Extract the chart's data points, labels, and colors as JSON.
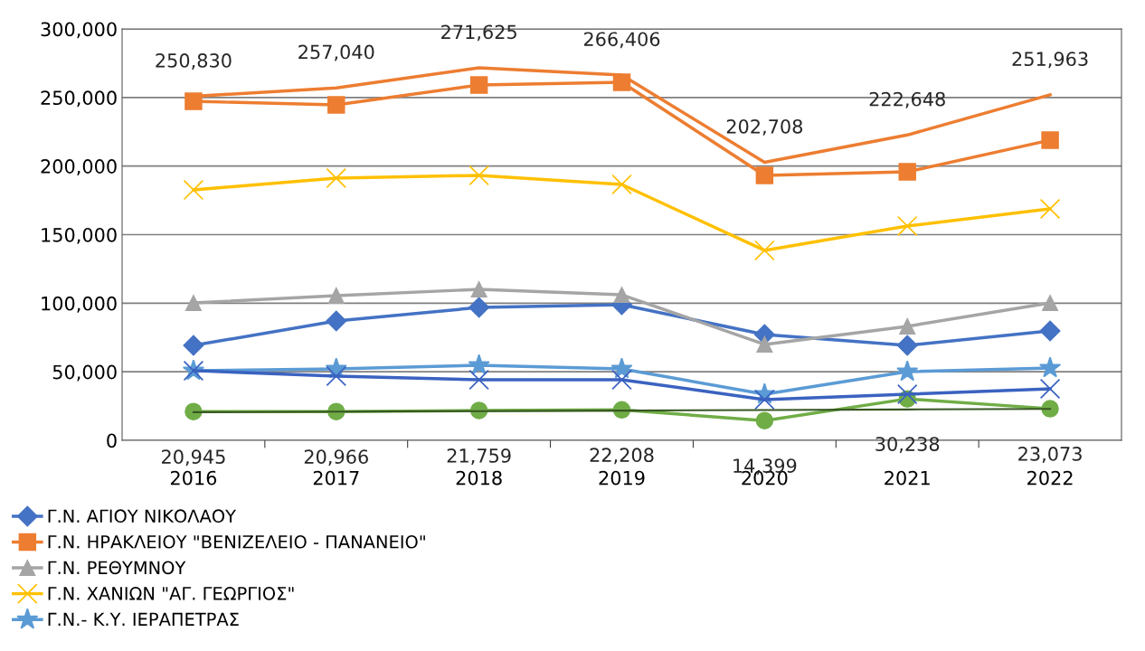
{
  "chart_data": {
    "type": "line",
    "categories": [
      "2016",
      "2017",
      "2018",
      "2019",
      "2020",
      "2021",
      "2022"
    ],
    "ylim": [
      0,
      300000
    ],
    "yticks": [
      {
        "value": 0,
        "label": "0"
      },
      {
        "value": 50000,
        "label": "50,000"
      },
      {
        "value": 100000,
        "label": "100,000"
      },
      {
        "value": 150000,
        "label": "150,000"
      },
      {
        "value": 200000,
        "label": "200,000"
      },
      {
        "value": 250000,
        "label": "250,000"
      },
      {
        "value": 300000,
        "label": "300,000"
      }
    ],
    "grid": "y",
    "legend": "bottom",
    "series": [
      {
        "name": "Γ.Ν. ΑΓΙΟΥ ΝΙΚΟΛΑΟΥ",
        "color": "#4472c4",
        "marker": "diamond",
        "values": [
          69200,
          87000,
          96900,
          98900,
          77100,
          69200,
          79800
        ]
      },
      {
        "name": "Γ.Ν. ΗΡΑΚΛΕΙΟΥ \"ΒΕΝΙΖΕΛΕΙΟ - ΠΑΝΑΝΕΙΟ\"",
        "color": "#ed7d31",
        "marker": "square",
        "values": [
          247200,
          244600,
          259100,
          261100,
          193200,
          195800,
          218900
        ]
      },
      {
        "name": "Γ.Ν. ΡΕΘΥΜΝΟΥ",
        "color": "#a5a5a5",
        "marker": "triangle",
        "values": [
          100200,
          105500,
          110100,
          106100,
          69900,
          83100,
          100200
        ]
      },
      {
        "name": "Γ.Ν. ΧΑΝΙΩΝ \"ΑΓ. ΓΕΩΡΓΙΟΣ\"",
        "color": "#ffc000",
        "marker": "cross",
        "values": [
          182600,
          191200,
          193200,
          186600,
          138500,
          156300,
          168800
        ]
      },
      {
        "name": "Γ.Ν.- Κ.Υ. ΙΕΡΑΠΕΤΡΑΣ",
        "color": "#5b9bd5",
        "marker": "star",
        "values": [
          50800,
          52100,
          54700,
          52100,
          33600,
          50100,
          52700
        ]
      },
      {
        "color": "#70ad47",
        "marker": "circle",
        "values": [
          20945,
          20966,
          21759,
          22208,
          14399,
          30238,
          23073
        ],
        "value_labels": [
          "20,945",
          "20,966",
          "21,759",
          "22,208",
          "14,399",
          "30,238",
          "23,073"
        ]
      },
      {
        "color": "#3a62c0",
        "marker": "cross",
        "values": [
          50800,
          46800,
          44200,
          44200,
          29700,
          33600,
          37600
        ]
      },
      {
        "color": "#ed7d31",
        "marker": "none",
        "values": [
          250830,
          257040,
          271625,
          266406,
          202708,
          222648,
          251963
        ],
        "value_labels": [
          "250,830",
          "257,040",
          "271,625",
          "266,406",
          "202,708",
          "222,648",
          "251,963"
        ]
      },
      {
        "color": "#375623",
        "marker": "none",
        "values": [
          20500,
          20900,
          21300,
          21700,
          22100,
          22500,
          22900
        ]
      }
    ]
  }
}
